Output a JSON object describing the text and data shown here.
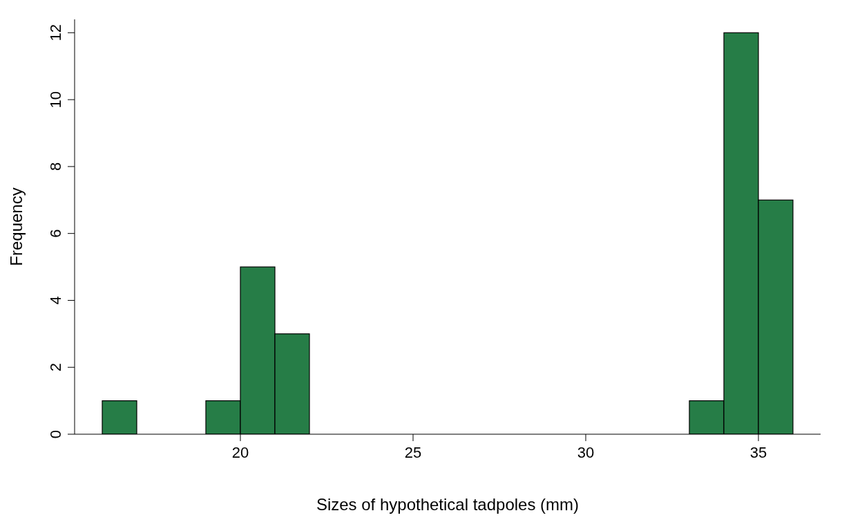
{
  "chart_data": {
    "type": "histogram",
    "xlabel": "Sizes of hypothetical tadpoles (mm)",
    "ylabel": "Frequency",
    "bins": [
      16,
      17,
      18,
      19,
      20,
      21,
      22,
      23,
      24,
      25,
      26,
      27,
      28,
      29,
      30,
      31,
      32,
      33,
      34,
      35,
      36
    ],
    "values": [
      1,
      0,
      0,
      1,
      5,
      3,
      0,
      0,
      0,
      0,
      0,
      0,
      0,
      0,
      0,
      0,
      0,
      1,
      12,
      7
    ],
    "color": "#267d47",
    "xlim": [
      15.2,
      36.8
    ],
    "xticks": [
      20,
      25,
      30,
      35
    ],
    "ylim": [
      0,
      12.4
    ],
    "yticks": [
      0,
      2,
      4,
      6,
      8,
      10,
      12
    ],
    "grid": false,
    "legend": false
  }
}
